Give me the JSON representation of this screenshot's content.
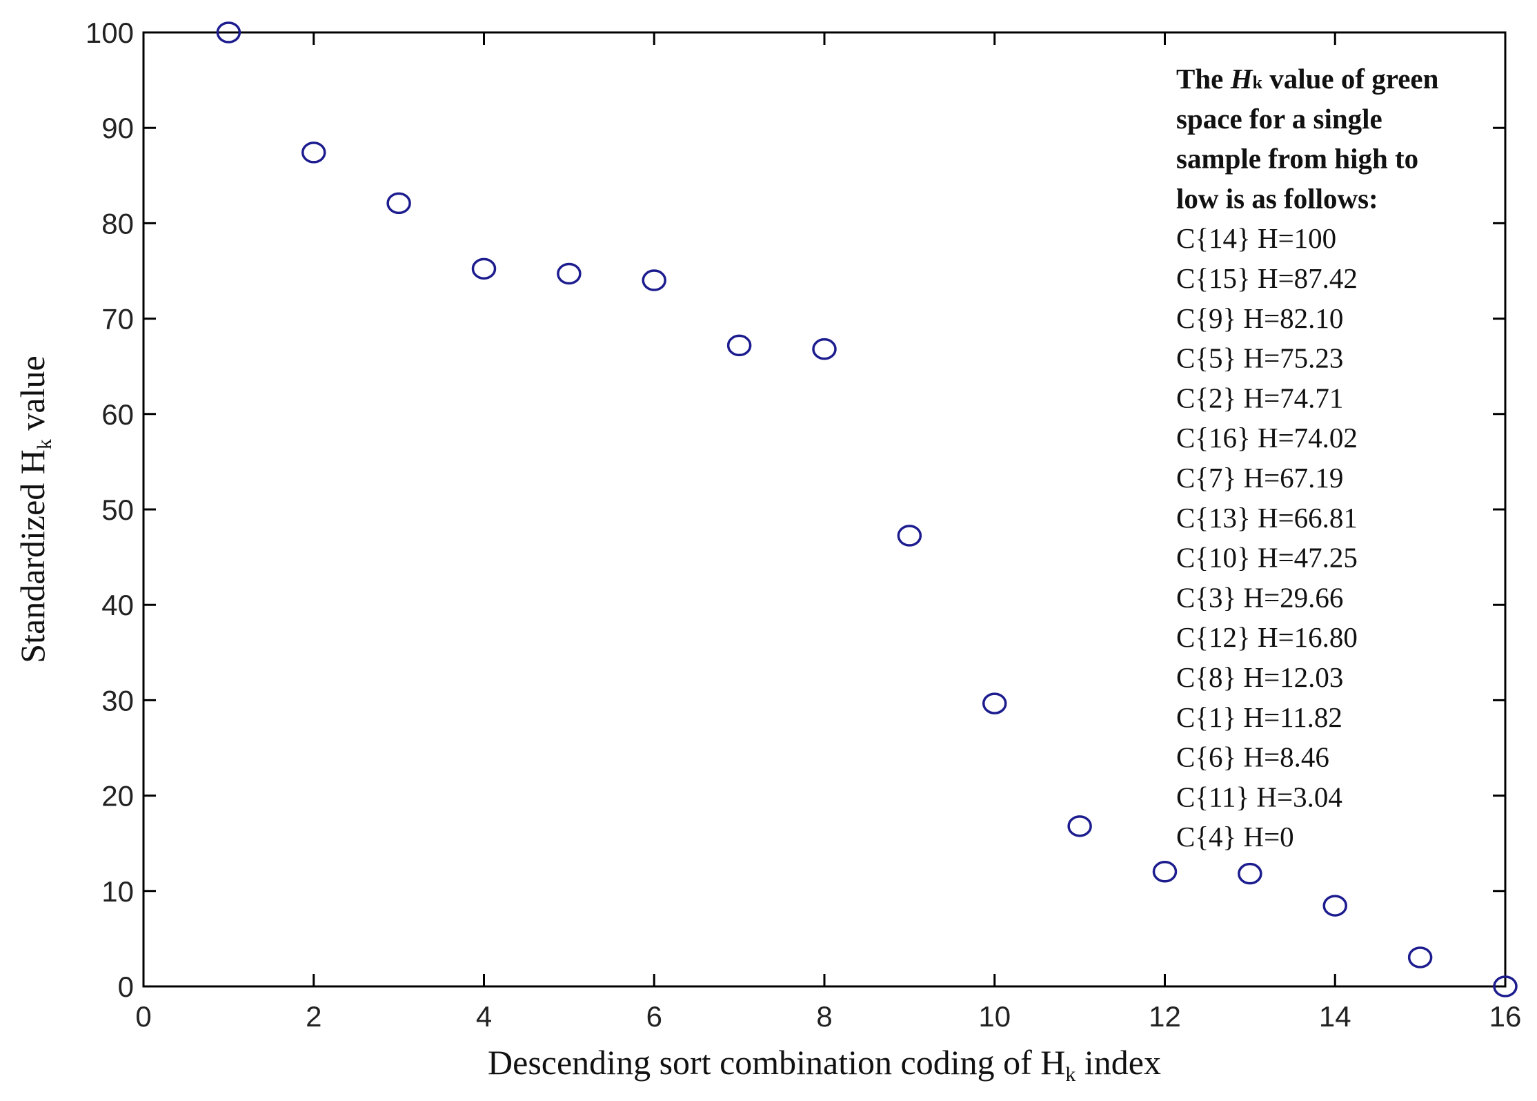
{
  "chart_data": {
    "type": "scatter",
    "xlabel": {
      "prefix": "Descending sort combination coding of H",
      "sub": "k",
      "suffix": " index"
    },
    "ylabel": {
      "prefix": "Standardized H",
      "sub": "k",
      "suffix": " value"
    },
    "xlim": [
      0,
      16
    ],
    "ylim": [
      0,
      100
    ],
    "xticks": [
      "0",
      "2",
      "4",
      "6",
      "8",
      "10",
      "12",
      "14",
      "16"
    ],
    "yticks": [
      "0",
      "10",
      "20",
      "30",
      "40",
      "50",
      "60",
      "70",
      "80",
      "90",
      "100"
    ],
    "grid": false,
    "marker": "circle",
    "marker_color": "#1c1c8f",
    "x": [
      1,
      2,
      3,
      4,
      5,
      6,
      7,
      8,
      9,
      10,
      11,
      12,
      13,
      14,
      15,
      16
    ],
    "y": [
      100,
      87.42,
      82.1,
      75.23,
      74.71,
      74.02,
      67.19,
      66.81,
      47.25,
      29.66,
      16.8,
      12.03,
      11.82,
      8.46,
      3.04,
      0
    ],
    "annotation": {
      "heading": [
        {
          "pre": "The ",
          "italic": "H",
          "sub": "k",
          "post": " value of green"
        },
        {
          "pre": "space for a single"
        },
        {
          "pre": "sample from high to"
        },
        {
          "pre": "low is as follows:"
        }
      ],
      "lines": [
        "C{14} H=100",
        "C{15} H=87.42",
        "C{9} H=82.10",
        "C{5} H=75.23",
        "C{2} H=74.71",
        "C{16} H=74.02",
        "C{7} H=67.19",
        "C{13} H=66.81",
        "C{10} H=47.25",
        "C{3} H=29.66",
        "C{12} H=16.80",
        "C{8} H=12.03",
        "C{1} H=11.82",
        "C{6} H=8.46",
        "C{11} H=3.04",
        "C{4} H=0"
      ]
    }
  }
}
